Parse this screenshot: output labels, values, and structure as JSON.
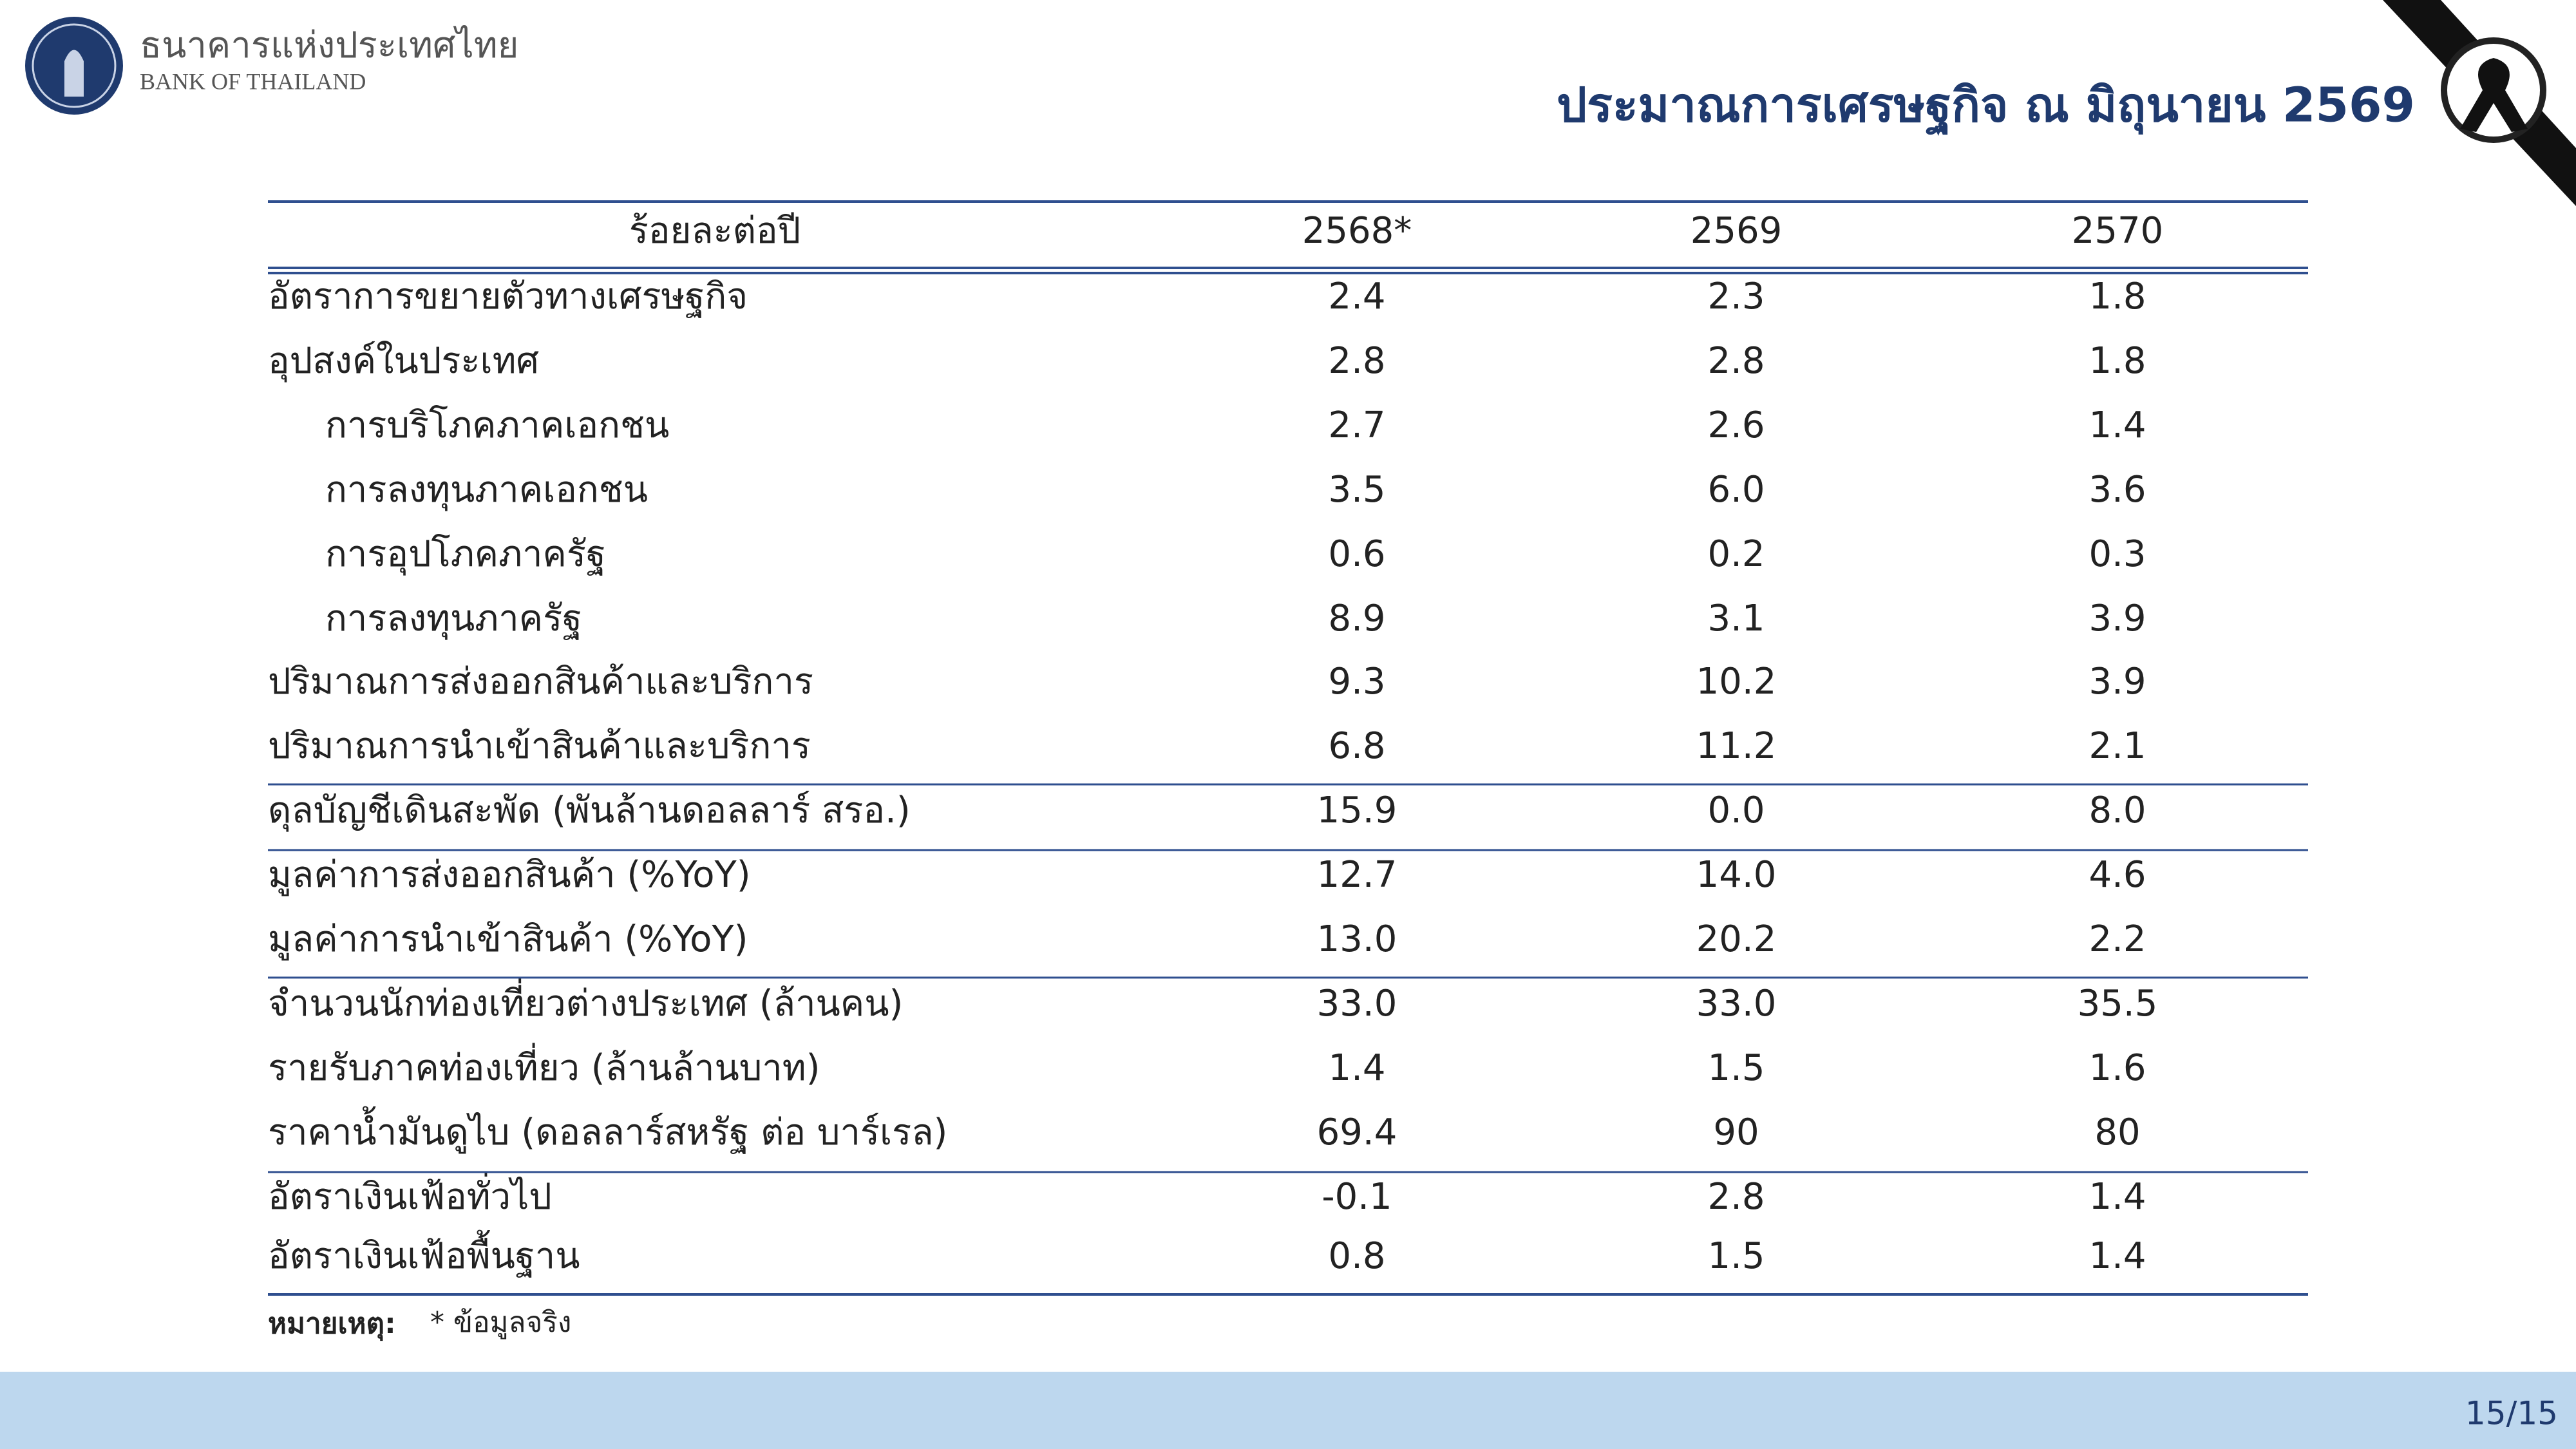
{
  "header": {
    "bank_name_th": "ธนาคารแห่งประเทศไทย",
    "bank_name_en": "BANK OF THAILAND",
    "title": "ประมาณการเศรษฐกิจ ณ มิถุนายน 2569"
  },
  "table": {
    "header": [
      "ร้อยละต่อปี",
      "2568*",
      "2569",
      "2570"
    ],
    "rows": [
      [
        "อัตราการขยายตัวทางเศรษฐกิจ",
        "2.4",
        "2.3",
        "1.8"
      ],
      [
        "อุปสงค์ในประเทศ",
        "2.8",
        "2.8",
        "1.8"
      ],
      [
        "การบริโภคภาคเอกชน",
        "2.7",
        "2.6",
        "1.4"
      ],
      [
        "การลงทุนภาคเอกชน",
        "3.5",
        "6.0",
        "3.6"
      ],
      [
        "การอุปโภคภาครัฐ",
        "0.6",
        "0.2",
        "0.3"
      ],
      [
        "การลงทุนภาครัฐ",
        "8.9",
        "3.1",
        "3.9"
      ],
      [
        "ปริมาณการส่งออกสินค้าและบริการ",
        "9.3",
        "10.2",
        "3.9"
      ],
      [
        "ปริมาณการนำเข้าสินค้าและบริการ",
        "6.8",
        "11.2",
        "2.1"
      ],
      [
        "ดุลบัญชีเดินสะพัด (พันล้านดอลลาร์ สรอ.)",
        "15.9",
        "0.0",
        "8.0"
      ],
      [
        "มูลค่าการส่งออกสินค้า (%YoY)",
        "12.7",
        "14.0",
        "4.6"
      ],
      [
        "มูลค่าการนำเข้าสินค้า (%YoY)",
        "13.0",
        "20.2",
        "2.2"
      ],
      [
        "จำนวนนักท่องเที่ยวต่างประเทศ (ล้านคน)",
        "33.0",
        "33.0",
        "35.5"
      ],
      [
        "รายรับภาคท่องเที่ยว (ล้านล้านบาท)",
        "1.4",
        "1.5",
        "1.6"
      ],
      [
        "ราคาน้ำมันดูไบ (ดอลลาร์สหรัฐ ต่อ บาร์เรล)",
        "69.4",
        "90",
        "80"
      ],
      [
        "อัตราเงินเฟ้อทั่วไป",
        "-0.1",
        "2.8",
        "1.4"
      ],
      [
        "อัตราเงินเฟ้อพื้นฐาน",
        "0.8",
        "1.5",
        "1.4"
      ]
    ]
  },
  "note": {
    "label": "หมายเหตุ:",
    "text": "* ข้อมูลจริง"
  },
  "footer": {
    "page": "15/15"
  }
}
